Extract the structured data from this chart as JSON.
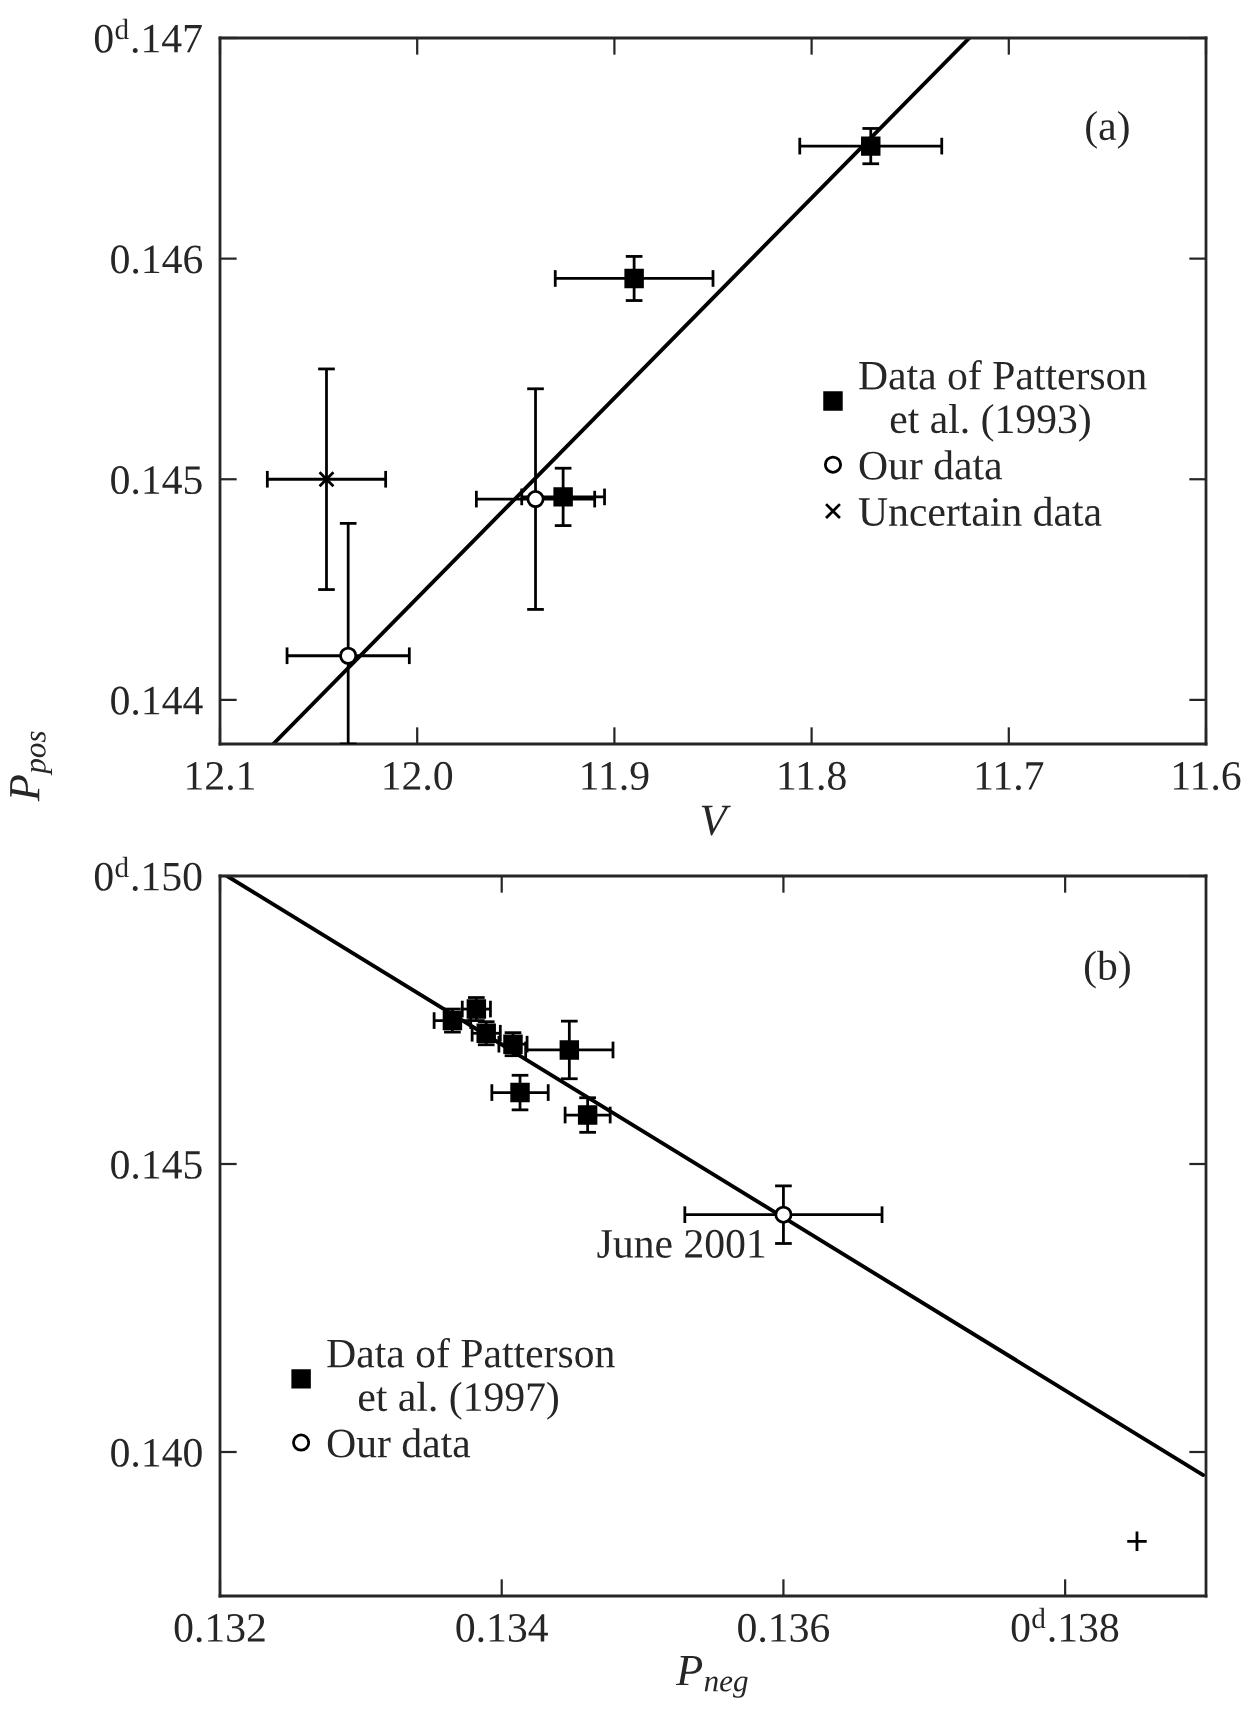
{
  "chart_data": [
    {
      "type": "scatter",
      "xlabel": "V",
      "ylabel": "P$_{pos}$",
      "xlim": [
        12.1,
        11.6
      ],
      "xticks": [
        12.1,
        {
          "value": 12.0,
          "label": "12.0"
        },
        11.9,
        11.8,
        11.7,
        11.6
      ],
      "ylim": [
        0.1438,
        0.147
      ],
      "yticks": [
        0.144,
        0.145,
        0.146,
        {
          "value": 0.147,
          "label": "0$^{d}$.147"
        }
      ],
      "grid": false,
      "legend": "right",
      "annotations": [
        "(a)"
      ],
      "series": [
        {
          "name": "Data of Patterson\n   et al. (1993)",
          "color": "#000000",
          "marker": "square",
          "x": [
            11.77,
            11.89,
            11.926
          ],
          "values": [
            0.14651,
            0.14591,
            0.14492
          ],
          "errors": [
            8e-05,
            0.0001,
            0.00013
          ],
          "xerrors": [
            0.036,
            0.04,
            0.021
          ]
        },
        {
          "name": "Our data",
          "color": "#000000",
          "marker": "circle",
          "x": [
            11.94,
            12.035
          ],
          "values": [
            0.14491,
            0.1442
          ],
          "errors": [
            0.0005,
            [
              0.1438,
              0.1448
            ]
          ],
          "xerrors": [
            0.03,
            0.031
          ]
        },
        {
          "name": "Uncertain data",
          "color": "#000000",
          "marker": "cross",
          "x": [
            12.046
          ],
          "values": [
            0.145
          ],
          "errors": [
            0.0005
          ],
          "xerrors": [
            0.03
          ]
        },
        {
          "type": "line",
          "color": "#000000",
          "x": [
            12.073,
            11.72
          ],
          "values": [
            0.1438,
            0.147
          ]
        }
      ]
    },
    {
      "type": "scatter",
      "xlabel": "P$_{neg}$",
      "xlim": [
        0.132,
        0.139
      ],
      "xticks": [
        0.132,
        0.134,
        0.136,
        {
          "value": 0.138,
          "label": "0$^{d}$.138"
        }
      ],
      "ylim": [
        0.1375,
        0.15
      ],
      "yticks": [
        {
          "value": 0.14,
          "label": "0.140"
        },
        0.145,
        {
          "value": 0.15,
          "label": "0$^{d}$.150"
        }
      ],
      "grid": false,
      "legend": "bottom left",
      "annotations": [
        "(b)",
        {
          "text": "June 2001",
          "x": 0.136,
          "y": 0.14412
        }
      ],
      "series": [
        {
          "name": "Data of Patterson\n   et al. (1997)",
          "color": "#000000",
          "marker": "square",
          "x": [
            0.13365,
            0.13382,
            0.13389,
            0.13408,
            0.13448,
            0.13413,
            0.13461
          ],
          "values": [
            0.14749,
            0.14769,
            0.14727,
            0.14708,
            0.14698,
            0.14624,
            0.14585
          ],
          "errors": [
            0.0002,
            0.0002,
            0.0002,
            0.0002,
            0.0005,
            0.0003,
            0.0003
          ],
          "xerrors": [
            0.00013,
            0.0001,
            0.0001,
            0.0001,
            0.00031,
            0.0002,
            0.00016
          ]
        },
        {
          "name": "Our data",
          "color": "#000000",
          "marker": "circle",
          "x": [
            0.136
          ],
          "values": [
            0.14412
          ],
          "errors": [
            0.0005
          ],
          "xerrors": [
            0.0007
          ]
        },
        {
          "color": "#000000",
          "marker": "plus",
          "x": [
            0.13851
          ],
          "values": [
            0.13845
          ]
        },
        {
          "type": "line",
          "color": "#000000",
          "x": [
            0.13205,
            0.13898
          ],
          "values": [
            0.15,
            0.1396
          ]
        }
      ]
    }
  ]
}
